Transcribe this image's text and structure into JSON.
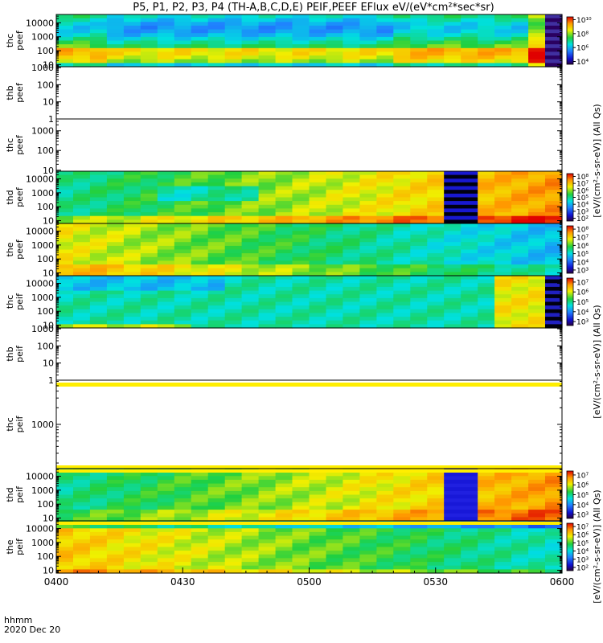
{
  "title": "P5, P1, P2, P3, P4 (TH-A,B,C,D,E) PEIF,PEEF EFlux eV/(eV*cm²*sec*sr)",
  "bottom_label": {
    "line1": "hhmm",
    "line2": "2020 Dec 20"
  },
  "x_ticks": [
    "0400",
    "0430",
    "0500",
    "0530",
    "0600"
  ],
  "right_labels": [
    "[eV/(cm²-s-sr-eV)] (All Qs)",
    "[eV/(cm²-s-sr-eV)] (All Qs)",
    "[eV/(cm²-s-sr-eV)] (All Qs)"
  ],
  "chart_data": [
    {
      "type": "heatmap",
      "probe": "thc",
      "species": "peef",
      "ylabel": "thc\npeef",
      "x_range": [
        "04:00",
        "06:00"
      ],
      "y_scale": "log",
      "y_ticks": [
        "10",
        "100",
        "1000",
        "10000"
      ],
      "colorbar": {
        "ticks": [
          "10⁴",
          "10⁶",
          "10⁸",
          "10¹⁰"
        ]
      },
      "has_data": true
    },
    {
      "type": "heatmap",
      "probe": "thb",
      "species": "peef",
      "ylabel": "thb\npeef",
      "y_scale": "log",
      "y_ticks": [
        "1",
        "10",
        "100",
        "1000"
      ],
      "has_data": false
    },
    {
      "type": "heatmap",
      "probe": "thc",
      "species": "peef",
      "ylabel": "thc\npeef",
      "y_scale": "log",
      "y_ticks": [
        "10",
        "100",
        "1000"
      ],
      "has_data": false
    },
    {
      "type": "heatmap",
      "probe": "thd",
      "species": "peef",
      "ylabel": "thd\npeef",
      "y_scale": "log",
      "y_ticks": [
        "10",
        "100",
        "1000",
        "10000"
      ],
      "colorbar": {
        "ticks": [
          "10²",
          "10³",
          "10⁴",
          "10⁵",
          "10⁶",
          "10⁷",
          "10⁸"
        ]
      },
      "has_data": true
    },
    {
      "type": "heatmap",
      "probe": "the",
      "species": "peef",
      "ylabel": "the\npeef",
      "y_scale": "log",
      "y_ticks": [
        "10",
        "100",
        "1000",
        "10000"
      ],
      "colorbar": {
        "ticks": [
          "10³",
          "10⁴",
          "10⁵",
          "10⁶",
          "10⁷",
          "10⁸"
        ]
      },
      "has_data": true
    },
    {
      "type": "heatmap",
      "probe": "thc",
      "species": "peif",
      "ylabel": "thc\npeif",
      "y_scale": "log",
      "y_ticks": [
        "10",
        "100",
        "1000",
        "10000"
      ],
      "colorbar": {
        "ticks": [
          "10³",
          "10⁴",
          "10⁵",
          "10⁶",
          "10⁷"
        ]
      },
      "has_data": true
    },
    {
      "type": "heatmap",
      "probe": "thb",
      "species": "peif",
      "ylabel": "thb\npeif",
      "y_scale": "log",
      "y_ticks": [
        "1",
        "10",
        "100",
        "1000"
      ],
      "has_data": false
    },
    {
      "type": "heatmap",
      "probe": "thc",
      "species": "peif",
      "ylabel": "thc\npeif",
      "y_scale": "log",
      "y_ticks": [
        "1000"
      ],
      "has_data": false
    },
    {
      "type": "heatmap",
      "probe": "thd",
      "species": "peif",
      "ylabel": "thd\npeif",
      "y_scale": "log",
      "y_ticks": [
        "10",
        "100",
        "1000",
        "10000"
      ],
      "colorbar": {
        "ticks": [
          "10³",
          "10⁴",
          "10⁵",
          "10⁶",
          "10⁷"
        ]
      },
      "has_data": true
    },
    {
      "type": "heatmap",
      "probe": "the",
      "species": "peif",
      "ylabel": "the\npeif",
      "y_scale": "log",
      "y_ticks": [
        "10",
        "100",
        "1000",
        "10000"
      ],
      "colorbar": {
        "ticks": [
          "10²",
          "10³",
          "10⁴",
          "10⁵",
          "10⁶",
          "10⁷"
        ]
      },
      "has_data": true
    }
  ]
}
